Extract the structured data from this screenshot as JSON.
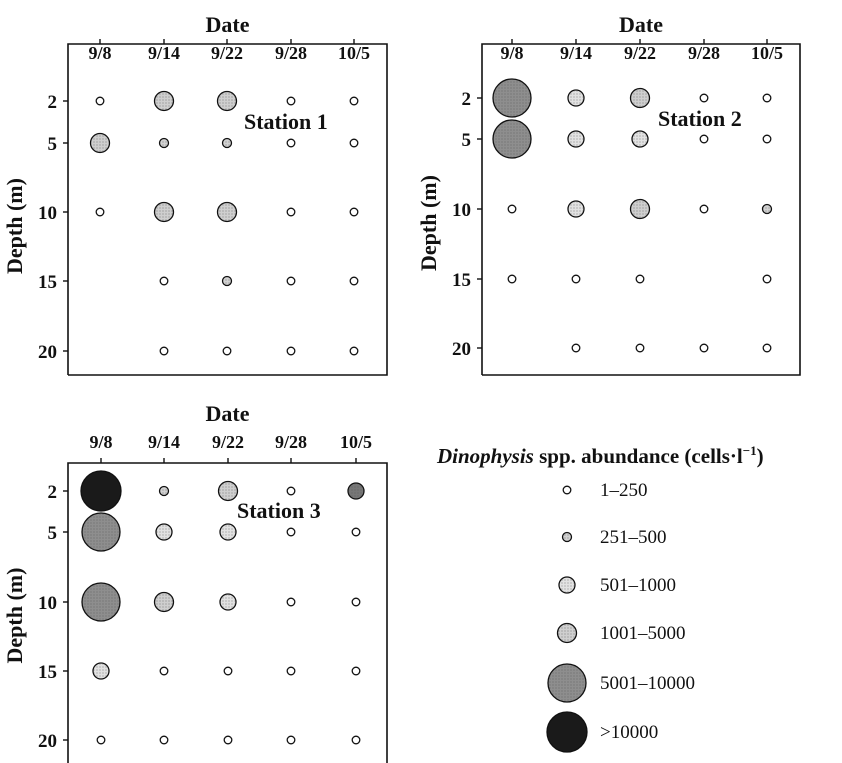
{
  "chart_data": [
    {
      "type": "bubble",
      "title": "Station 1",
      "xlabel": "Date",
      "ylabel": "Depth (m)",
      "x_categories": [
        "9/8",
        "9/14",
        "9/22",
        "9/28",
        "10/5"
      ],
      "y_ticks": [
        2,
        5,
        10,
        15,
        20
      ],
      "points": [
        {
          "x": "9/8",
          "depth": 2,
          "cls": 0
        },
        {
          "x": "9/14",
          "depth": 2,
          "cls": 3
        },
        {
          "x": "9/22",
          "depth": 2,
          "cls": 3
        },
        {
          "x": "9/28",
          "depth": 2,
          "cls": 0
        },
        {
          "x": "10/5",
          "depth": 2,
          "cls": 0
        },
        {
          "x": "9/8",
          "depth": 5,
          "cls": 3
        },
        {
          "x": "9/14",
          "depth": 5,
          "cls": 1
        },
        {
          "x": "9/22",
          "depth": 5,
          "cls": 1
        },
        {
          "x": "9/28",
          "depth": 5,
          "cls": 0
        },
        {
          "x": "10/5",
          "depth": 5,
          "cls": 0
        },
        {
          "x": "9/8",
          "depth": 10,
          "cls": 0
        },
        {
          "x": "9/14",
          "depth": 10,
          "cls": 3
        },
        {
          "x": "9/22",
          "depth": 10,
          "cls": 3
        },
        {
          "x": "9/28",
          "depth": 10,
          "cls": 0
        },
        {
          "x": "10/5",
          "depth": 10,
          "cls": 0
        },
        {
          "x": "9/14",
          "depth": 15,
          "cls": 0
        },
        {
          "x": "9/22",
          "depth": 15,
          "cls": 1
        },
        {
          "x": "9/28",
          "depth": 15,
          "cls": 0
        },
        {
          "x": "10/5",
          "depth": 15,
          "cls": 0
        },
        {
          "x": "9/14",
          "depth": 20,
          "cls": 0
        },
        {
          "x": "9/22",
          "depth": 20,
          "cls": 0
        },
        {
          "x": "9/28",
          "depth": 20,
          "cls": 0
        },
        {
          "x": "10/5",
          "depth": 20,
          "cls": 0
        }
      ]
    },
    {
      "type": "bubble",
      "title": "Station 2",
      "xlabel": "Date",
      "ylabel": "Depth (m)",
      "x_categories": [
        "9/8",
        "9/14",
        "9/22",
        "9/28",
        "10/5"
      ],
      "y_ticks": [
        2,
        5,
        10,
        15,
        20
      ],
      "points": [
        {
          "x": "9/8",
          "depth": 2,
          "cls": 4
        },
        {
          "x": "9/14",
          "depth": 2,
          "cls": 2
        },
        {
          "x": "9/22",
          "depth": 2,
          "cls": 3
        },
        {
          "x": "9/28",
          "depth": 2,
          "cls": 0
        },
        {
          "x": "10/5",
          "depth": 2,
          "cls": 0
        },
        {
          "x": "9/8",
          "depth": 5,
          "cls": 4
        },
        {
          "x": "9/14",
          "depth": 5,
          "cls": 2
        },
        {
          "x": "9/22",
          "depth": 5,
          "cls": 2
        },
        {
          "x": "9/28",
          "depth": 5,
          "cls": 0
        },
        {
          "x": "10/5",
          "depth": 5,
          "cls": 0
        },
        {
          "x": "9/8",
          "depth": 10,
          "cls": 0
        },
        {
          "x": "9/14",
          "depth": 10,
          "cls": 2
        },
        {
          "x": "9/22",
          "depth": 10,
          "cls": 3
        },
        {
          "x": "9/28",
          "depth": 10,
          "cls": 0
        },
        {
          "x": "10/5",
          "depth": 10,
          "cls": 1
        },
        {
          "x": "9/8",
          "depth": 15,
          "cls": 0
        },
        {
          "x": "9/14",
          "depth": 15,
          "cls": 0
        },
        {
          "x": "9/22",
          "depth": 15,
          "cls": 0
        },
        {
          "x": "10/5",
          "depth": 15,
          "cls": 0
        },
        {
          "x": "9/14",
          "depth": 20,
          "cls": 0
        },
        {
          "x": "9/22",
          "depth": 20,
          "cls": 0
        },
        {
          "x": "9/28",
          "depth": 20,
          "cls": 0
        },
        {
          "x": "10/5",
          "depth": 20,
          "cls": 0
        }
      ]
    },
    {
      "type": "bubble",
      "title": "Station 3",
      "xlabel": "Date",
      "ylabel": "Depth (m)",
      "x_categories": [
        "9/8",
        "9/14",
        "9/22",
        "9/28",
        "10/5"
      ],
      "y_ticks": [
        2,
        5,
        10,
        15,
        20
      ],
      "points": [
        {
          "x": "9/8",
          "depth": 2,
          "cls": 5
        },
        {
          "x": "9/14",
          "depth": 2,
          "cls": 1
        },
        {
          "x": "9/22",
          "depth": 2,
          "cls": 3
        },
        {
          "x": "9/28",
          "depth": 2,
          "cls": 0
        },
        {
          "x": "10/5",
          "depth": 2,
          "cls": 2,
          "fill": "#777777"
        },
        {
          "x": "9/8",
          "depth": 5,
          "cls": 4
        },
        {
          "x": "9/14",
          "depth": 5,
          "cls": 2
        },
        {
          "x": "9/22",
          "depth": 5,
          "cls": 2
        },
        {
          "x": "9/28",
          "depth": 5,
          "cls": 0
        },
        {
          "x": "10/5",
          "depth": 5,
          "cls": 0
        },
        {
          "x": "9/8",
          "depth": 10,
          "cls": 4
        },
        {
          "x": "9/14",
          "depth": 10,
          "cls": 3
        },
        {
          "x": "9/22",
          "depth": 10,
          "cls": 2
        },
        {
          "x": "9/28",
          "depth": 10,
          "cls": 0
        },
        {
          "x": "10/5",
          "depth": 10,
          "cls": 0
        },
        {
          "x": "9/8",
          "depth": 15,
          "cls": 2
        },
        {
          "x": "9/14",
          "depth": 15,
          "cls": 0
        },
        {
          "x": "9/22",
          "depth": 15,
          "cls": 0
        },
        {
          "x": "9/28",
          "depth": 15,
          "cls": 0
        },
        {
          "x": "10/5",
          "depth": 15,
          "cls": 0
        },
        {
          "x": "9/8",
          "depth": 20,
          "cls": 0
        },
        {
          "x": "9/14",
          "depth": 20,
          "cls": 0
        },
        {
          "x": "9/22",
          "depth": 20,
          "cls": 0
        },
        {
          "x": "9/28",
          "depth": 20,
          "cls": 0
        },
        {
          "x": "10/5",
          "depth": 20,
          "cls": 0
        }
      ]
    }
  ],
  "legend": {
    "title_species": "Dinophysis",
    "title_rest": " spp. abundance (cells·l",
    "title_sup": "−1",
    "title_close": ")",
    "classes": [
      {
        "label": "1–250",
        "fill": "#ffffff"
      },
      {
        "label": "251–500",
        "fill": "#d2d2d2"
      },
      {
        "label": "501–1000",
        "fill": "#e2e2e2"
      },
      {
        "label": "1001–5000",
        "fill": "#cfcfcf"
      },
      {
        "label": "5001–10000",
        "fill": "#8e8e8e"
      },
      {
        "label": ">10000",
        "fill": "#1a1a1a"
      }
    ]
  }
}
